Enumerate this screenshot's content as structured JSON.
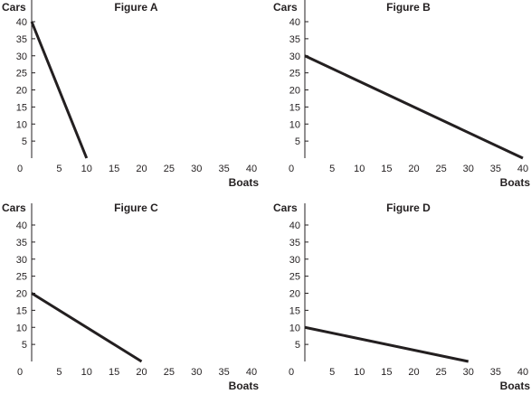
{
  "chart_data": [
    {
      "type": "line",
      "title": "Figure A",
      "xlabel": "Boats",
      "ylabel": "Cars",
      "xlim": [
        0,
        40
      ],
      "ylim": [
        0,
        40
      ],
      "x_ticks": [
        "0",
        "5",
        "10",
        "15",
        "20",
        "25",
        "30",
        "35",
        "40"
      ],
      "y_ticks": [
        "5",
        "10",
        "15",
        "20",
        "25",
        "30",
        "35",
        "40"
      ],
      "grid": false,
      "series": [
        {
          "x": [
            0,
            10
          ],
          "y": [
            40,
            0
          ]
        }
      ]
    },
    {
      "type": "line",
      "title": "Figure B",
      "xlabel": "Boats",
      "ylabel": "Cars",
      "xlim": [
        0,
        40
      ],
      "ylim": [
        0,
        40
      ],
      "x_ticks": [
        "0",
        "5",
        "10",
        "15",
        "20",
        "25",
        "30",
        "35",
        "40"
      ],
      "y_ticks": [
        "5",
        "10",
        "15",
        "20",
        "25",
        "30",
        "35",
        "40"
      ],
      "grid": false,
      "series": [
        {
          "x": [
            0,
            40
          ],
          "y": [
            30,
            0
          ]
        }
      ]
    },
    {
      "type": "line",
      "title": "Figure C",
      "xlabel": "Boats",
      "ylabel": "Cars",
      "xlim": [
        0,
        40
      ],
      "ylim": [
        0,
        40
      ],
      "x_ticks": [
        "0",
        "5",
        "10",
        "15",
        "20",
        "25",
        "30",
        "35",
        "40"
      ],
      "y_ticks": [
        "5",
        "10",
        "15",
        "20",
        "25",
        "30",
        "35",
        "40"
      ],
      "grid": false,
      "series": [
        {
          "x": [
            0,
            20
          ],
          "y": [
            20,
            0
          ]
        }
      ]
    },
    {
      "type": "line",
      "title": "Figure D",
      "xlabel": "Boats",
      "ylabel": "Cars",
      "xlim": [
        0,
        40
      ],
      "ylim": [
        0,
        40
      ],
      "x_ticks": [
        "0",
        "5",
        "10",
        "15",
        "20",
        "25",
        "30",
        "35",
        "40"
      ],
      "y_ticks": [
        "5",
        "10",
        "15",
        "20",
        "25",
        "30",
        "35",
        "40"
      ],
      "grid": false,
      "series": [
        {
          "x": [
            0,
            30
          ],
          "y": [
            10,
            0
          ]
        }
      ]
    }
  ]
}
